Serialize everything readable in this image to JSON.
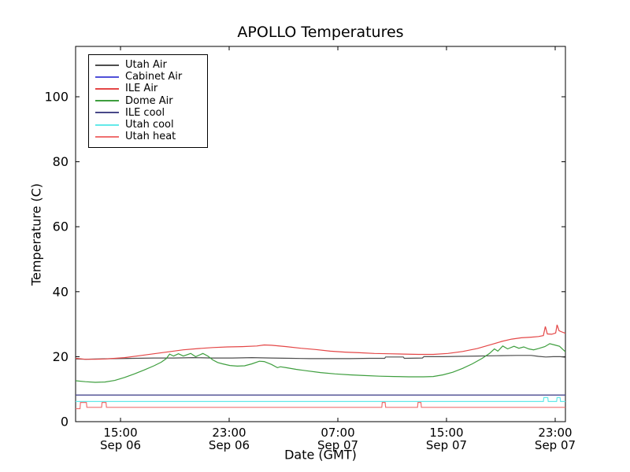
{
  "chart_data": {
    "type": "line",
    "title": "APOLLO Temperatures",
    "xlabel": "Date (GMT)",
    "ylabel": "Temperature (C)",
    "ylim": [
      0,
      115.5
    ],
    "yticks": [
      0,
      20,
      40,
      60,
      80,
      100
    ],
    "xticks": [
      {
        "frac": 0.0917,
        "time": "15:00",
        "date": "Sep 06"
      },
      {
        "frac": 0.3135,
        "time": "23:00",
        "date": "Sep 06"
      },
      {
        "frac": 0.5354,
        "time": "07:00",
        "date": "Sep 07"
      },
      {
        "frac": 0.7572,
        "time": "15:00",
        "date": "Sep 07"
      },
      {
        "frac": 0.9791,
        "time": "23:00",
        "date": "Sep 07"
      }
    ],
    "grid": false,
    "legend_position": "upper left",
    "series": [
      {
        "name": "Utah Air",
        "color": "#4d4d4d",
        "points": [
          [
            0,
            19.3
          ],
          [
            0.02,
            19.2
          ],
          [
            0.04,
            19.3
          ],
          [
            0.08,
            19.4
          ],
          [
            0.12,
            19.5
          ],
          [
            0.16,
            19.6
          ],
          [
            0.2,
            19.6
          ],
          [
            0.24,
            19.7
          ],
          [
            0.28,
            19.6
          ],
          [
            0.32,
            19.6
          ],
          [
            0.36,
            19.7
          ],
          [
            0.4,
            19.6
          ],
          [
            0.44,
            19.5
          ],
          [
            0.48,
            19.4
          ],
          [
            0.52,
            19.4
          ],
          [
            0.56,
            19.4
          ],
          [
            0.6,
            19.5
          ],
          [
            0.631,
            19.5
          ],
          [
            0.633,
            19.9
          ],
          [
            0.669,
            19.9
          ],
          [
            0.671,
            19.5
          ],
          [
            0.708,
            19.6
          ],
          [
            0.711,
            20.0
          ],
          [
            0.75,
            20.0
          ],
          [
            0.78,
            20.1
          ],
          [
            0.82,
            20.2
          ],
          [
            0.86,
            20.3
          ],
          [
            0.9,
            20.4
          ],
          [
            0.93,
            20.4
          ],
          [
            0.945,
            20.1
          ],
          [
            0.96,
            19.9
          ],
          [
            0.975,
            20.0
          ],
          [
            0.99,
            20.0
          ],
          [
            1,
            19.8
          ]
        ]
      },
      {
        "name": "Cabinet Air",
        "color": "#5050d8",
        "points": [
          [
            0,
            8.2
          ],
          [
            1,
            8.2
          ]
        ]
      },
      {
        "name": "ILE Air",
        "color": "#e44646",
        "points": [
          [
            0,
            19.5
          ],
          [
            0.02,
            19.2
          ],
          [
            0.04,
            19.2
          ],
          [
            0.06,
            19.3
          ],
          [
            0.08,
            19.5
          ],
          [
            0.1,
            19.7
          ],
          [
            0.13,
            20.3
          ],
          [
            0.16,
            20.9
          ],
          [
            0.19,
            21.5
          ],
          [
            0.22,
            22.1
          ],
          [
            0.25,
            22.5
          ],
          [
            0.28,
            22.8
          ],
          [
            0.31,
            23.0
          ],
          [
            0.34,
            23.1
          ],
          [
            0.37,
            23.3
          ],
          [
            0.385,
            23.6
          ],
          [
            0.4,
            23.5
          ],
          [
            0.43,
            23.1
          ],
          [
            0.46,
            22.6
          ],
          [
            0.49,
            22.2
          ],
          [
            0.52,
            21.7
          ],
          [
            0.55,
            21.4
          ],
          [
            0.58,
            21.2
          ],
          [
            0.61,
            21.0
          ],
          [
            0.64,
            20.9
          ],
          [
            0.67,
            20.8
          ],
          [
            0.7,
            20.7
          ],
          [
            0.73,
            20.7
          ],
          [
            0.76,
            21.0
          ],
          [
            0.79,
            21.6
          ],
          [
            0.82,
            22.5
          ],
          [
            0.85,
            23.8
          ],
          [
            0.87,
            24.7
          ],
          [
            0.89,
            25.4
          ],
          [
            0.91,
            25.8
          ],
          [
            0.93,
            26.0
          ],
          [
            0.945,
            26.2
          ],
          [
            0.955,
            26.5
          ],
          [
            0.959,
            29.3
          ],
          [
            0.963,
            27.0
          ],
          [
            0.972,
            26.9
          ],
          [
            0.98,
            27.3
          ],
          [
            0.983,
            29.8
          ],
          [
            0.987,
            28.0
          ],
          [
            0.993,
            27.6
          ],
          [
            1,
            27.2
          ]
        ]
      },
      {
        "name": "Dome Air",
        "color": "#3e9e3e",
        "points": [
          [
            0,
            12.6
          ],
          [
            0.02,
            12.3
          ],
          [
            0.04,
            12.1
          ],
          [
            0.06,
            12.2
          ],
          [
            0.08,
            12.7
          ],
          [
            0.1,
            13.6
          ],
          [
            0.12,
            14.7
          ],
          [
            0.14,
            15.9
          ],
          [
            0.16,
            17.2
          ],
          [
            0.175,
            18.3
          ],
          [
            0.185,
            19.4
          ],
          [
            0.192,
            20.8
          ],
          [
            0.2,
            20.2
          ],
          [
            0.21,
            20.9
          ],
          [
            0.22,
            20.2
          ],
          [
            0.235,
            21.0
          ],
          [
            0.245,
            20.0
          ],
          [
            0.26,
            21.0
          ],
          [
            0.27,
            20.2
          ],
          [
            0.28,
            19.0
          ],
          [
            0.29,
            18.2
          ],
          [
            0.3,
            17.8
          ],
          [
            0.315,
            17.3
          ],
          [
            0.33,
            17.1
          ],
          [
            0.345,
            17.2
          ],
          [
            0.36,
            17.8
          ],
          [
            0.375,
            18.6
          ],
          [
            0.385,
            18.5
          ],
          [
            0.4,
            17.6
          ],
          [
            0.412,
            16.6
          ],
          [
            0.418,
            16.9
          ],
          [
            0.43,
            16.6
          ],
          [
            0.45,
            16.1
          ],
          [
            0.47,
            15.7
          ],
          [
            0.5,
            15.1
          ],
          [
            0.53,
            14.7
          ],
          [
            0.56,
            14.4
          ],
          [
            0.59,
            14.2
          ],
          [
            0.62,
            14.0
          ],
          [
            0.65,
            13.9
          ],
          [
            0.68,
            13.8
          ],
          [
            0.71,
            13.8
          ],
          [
            0.73,
            13.9
          ],
          [
            0.75,
            14.4
          ],
          [
            0.77,
            15.2
          ],
          [
            0.79,
            16.4
          ],
          [
            0.81,
            17.8
          ],
          [
            0.83,
            19.5
          ],
          [
            0.845,
            21.0
          ],
          [
            0.855,
            22.4
          ],
          [
            0.862,
            21.7
          ],
          [
            0.872,
            23.3
          ],
          [
            0.882,
            22.4
          ],
          [
            0.895,
            23.2
          ],
          [
            0.905,
            22.6
          ],
          [
            0.915,
            23.0
          ],
          [
            0.925,
            22.4
          ],
          [
            0.935,
            22.1
          ],
          [
            0.945,
            22.5
          ],
          [
            0.958,
            23.1
          ],
          [
            0.968,
            24.0
          ],
          [
            0.978,
            23.6
          ],
          [
            0.988,
            23.2
          ],
          [
            0.995,
            22.2
          ],
          [
            1,
            21.5
          ]
        ]
      },
      {
        "name": "ILE cool",
        "color": "#484888",
        "points": [
          [
            0,
            8.2
          ],
          [
            1,
            8.2
          ]
        ]
      },
      {
        "name": "Utah cool",
        "color": "#63e9e9",
        "points": [
          [
            0,
            6.2
          ],
          [
            0.955,
            6.2
          ],
          [
            0.956,
            7.4
          ],
          [
            0.964,
            7.4
          ],
          [
            0.965,
            6.2
          ],
          [
            0.982,
            6.2
          ],
          [
            0.983,
            7.4
          ],
          [
            0.989,
            7.4
          ],
          [
            0.99,
            6.2
          ],
          [
            1,
            6.2
          ]
        ]
      },
      {
        "name": "Utah heat",
        "color": "#ef7070",
        "points": [
          [
            0,
            4.0
          ],
          [
            0.009,
            4.0
          ],
          [
            0.01,
            5.9
          ],
          [
            0.022,
            5.9
          ],
          [
            0.023,
            4.4
          ],
          [
            0.053,
            4.4
          ],
          [
            0.054,
            5.9
          ],
          [
            0.062,
            5.9
          ],
          [
            0.063,
            4.4
          ],
          [
            0.625,
            4.4
          ],
          [
            0.626,
            5.9
          ],
          [
            0.632,
            5.9
          ],
          [
            0.633,
            4.4
          ],
          [
            0.698,
            4.4
          ],
          [
            0.699,
            5.9
          ],
          [
            0.705,
            5.9
          ],
          [
            0.706,
            4.4
          ],
          [
            1,
            4.4
          ]
        ]
      }
    ]
  }
}
